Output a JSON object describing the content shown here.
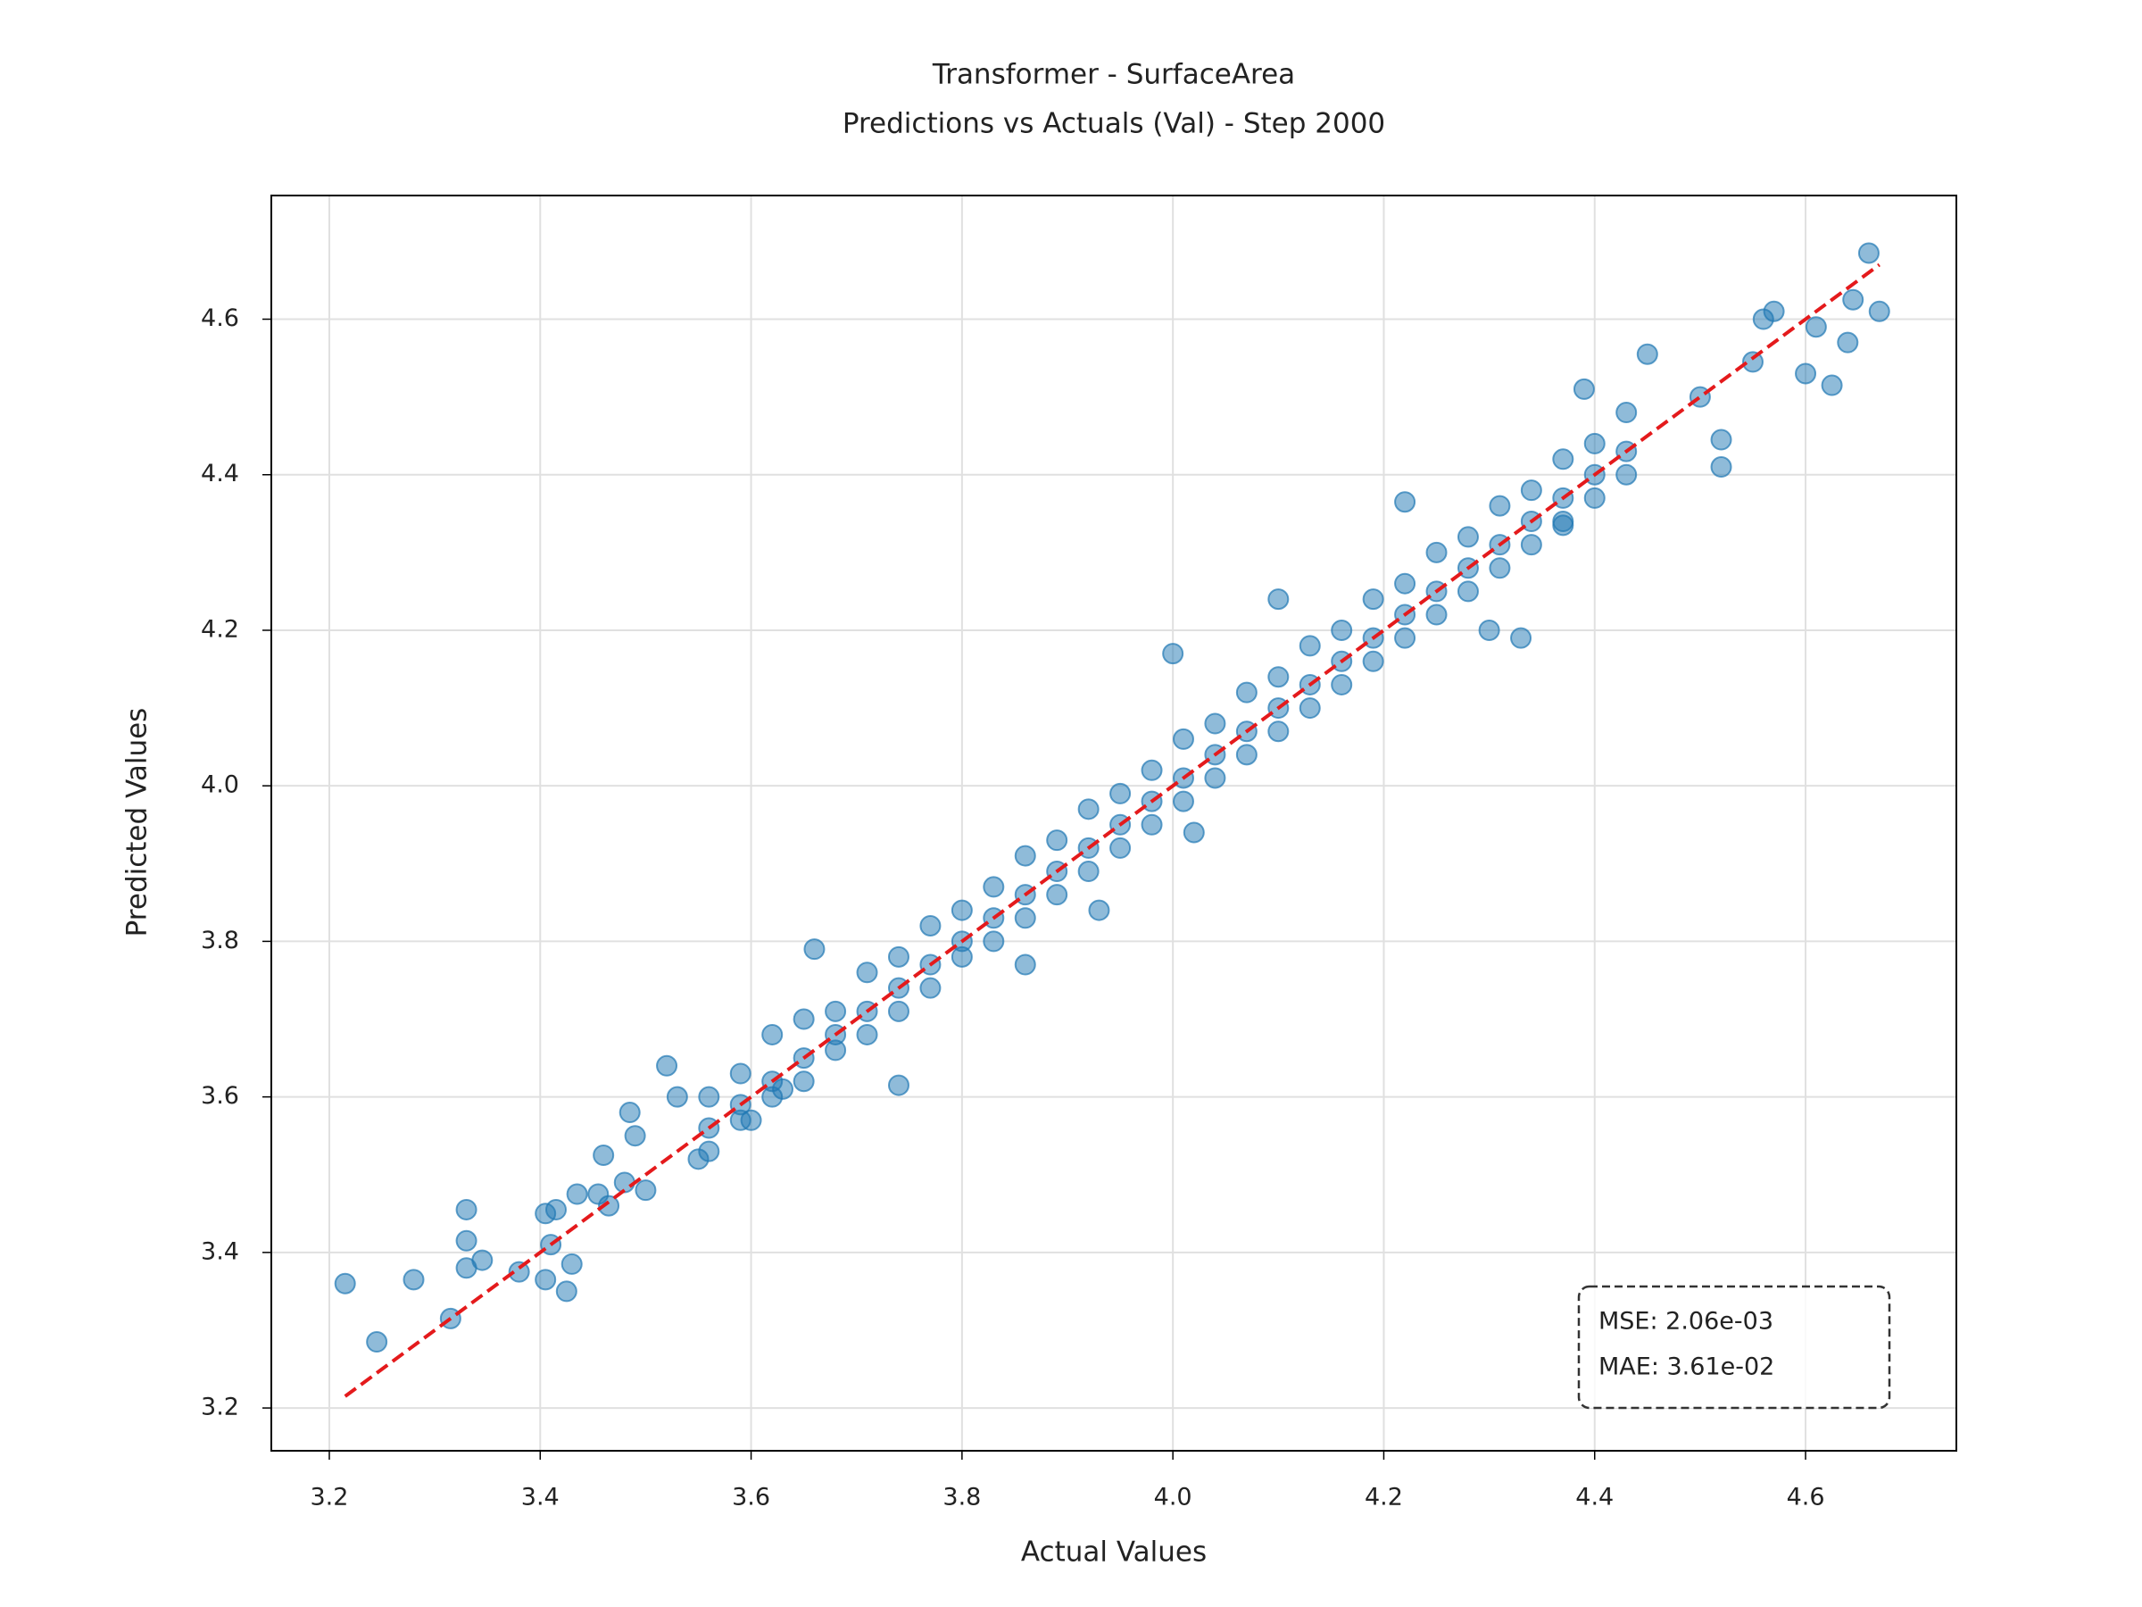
{
  "chart_data": {
    "type": "scatter",
    "title": "Transformer - SurfaceArea",
    "subtitle": "Predictions vs Actuals (Val) - Step 2000",
    "xlabel": "Actual Values",
    "ylabel": "Predicted Values",
    "xlim": [
      3.145,
      4.743
    ],
    "ylim": [
      3.145,
      4.759
    ],
    "xticks": [
      3.2,
      3.4,
      3.6,
      3.8,
      {
        "value": 4,
        "label": "4.0"
      },
      4.2,
      4.4,
      4.6
    ],
    "yticks": [
      3.2,
      3.4,
      3.6,
      3.8,
      {
        "value": 4,
        "label": "4.0"
      },
      4.2,
      4.4,
      4.6
    ],
    "grid": true,
    "x": [
      3.215,
      3.245,
      3.28,
      3.315,
      3.33,
      3.33,
      3.33,
      3.345,
      3.38,
      3.405,
      3.405,
      3.41,
      3.415,
      3.425,
      3.43,
      3.435,
      3.455,
      3.465,
      3.46,
      3.48,
      3.485,
      3.49,
      3.5,
      3.52,
      3.53,
      3.55,
      3.6,
      3.63,
      3.66,
      3.74,
      3.86,
      3.93,
      4.02,
      4.0,
      4.1,
      4.22,
      4.3,
      4.33,
      4.37,
      4.39,
      4.45,
      4.5,
      4.52,
      4.52,
      4.55,
      4.56,
      4.57,
      4.6,
      4.61,
      4.625,
      4.64,
      4.645,
      4.66,
      4.67,
      3.56,
      3.56,
      3.56,
      3.59,
      3.59,
      3.59,
      3.62,
      3.62,
      3.62,
      3.65,
      3.65,
      3.65,
      3.68,
      3.68,
      3.68,
      3.71,
      3.71,
      3.71,
      3.74,
      3.74,
      3.74,
      3.77,
      3.77,
      3.77,
      3.8,
      3.8,
      3.8,
      3.83,
      3.83,
      3.83,
      3.86,
      3.86,
      3.86,
      3.89,
      3.89,
      3.89,
      3.92,
      3.92,
      3.92,
      3.95,
      3.95,
      3.95,
      3.98,
      3.98,
      3.98,
      4.01,
      4.01,
      4.01,
      4.04,
      4.04,
      4.04,
      4.07,
      4.07,
      4.07,
      4.1,
      4.1,
      4.1,
      4.13,
      4.13,
      4.13,
      4.16,
      4.16,
      4.16,
      4.19,
      4.19,
      4.19,
      4.22,
      4.22,
      4.22,
      4.25,
      4.25,
      4.25,
      4.28,
      4.28,
      4.28,
      4.31,
      4.31,
      4.31,
      4.34,
      4.34,
      4.34,
      4.37,
      4.37,
      4.37,
      4.4,
      4.4,
      4.4,
      4.43,
      4.43,
      4.43
    ],
    "series": [
      {
        "color": "#1f77b4",
        "values": [
          3.36,
          3.285,
          3.365,
          3.315,
          3.455,
          3.415,
          3.38,
          3.39,
          3.375,
          3.365,
          3.45,
          3.41,
          3.455,
          3.35,
          3.385,
          3.475,
          3.475,
          3.46,
          3.525,
          3.49,
          3.58,
          3.55,
          3.48,
          3.64,
          3.6,
          3.52,
          3.57,
          3.61,
          3.79,
          3.615,
          3.77,
          3.84,
          3.94,
          4.17,
          4.24,
          4.365,
          4.2,
          4.19,
          4.335,
          4.51,
          4.555,
          4.5,
          4.445,
          4.41,
          4.545,
          4.6,
          4.61,
          4.53,
          4.59,
          4.515,
          4.57,
          4.625,
          4.685,
          4.61,
          3.6,
          3.56,
          3.53,
          3.63,
          3.59,
          3.57,
          3.68,
          3.62,
          3.6,
          3.7,
          3.65,
          3.62,
          3.71,
          3.68,
          3.66,
          3.76,
          3.71,
          3.68,
          3.78,
          3.74,
          3.71,
          3.82,
          3.77,
          3.74,
          3.84,
          3.8,
          3.78,
          3.87,
          3.83,
          3.8,
          3.91,
          3.86,
          3.83,
          3.93,
          3.89,
          3.86,
          3.97,
          3.92,
          3.89,
          3.99,
          3.95,
          3.92,
          4.02,
          3.98,
          3.95,
          4.06,
          4.01,
          3.98,
          4.08,
          4.04,
          4.01,
          4.12,
          4.07,
          4.04,
          4.14,
          4.1,
          4.07,
          4.18,
          4.13,
          4.1,
          4.2,
          4.16,
          4.13,
          4.24,
          4.19,
          4.16,
          4.26,
          4.22,
          4.19,
          4.3,
          4.25,
          4.22,
          4.32,
          4.28,
          4.25,
          4.36,
          4.31,
          4.28,
          4.38,
          4.34,
          4.31,
          4.42,
          4.37,
          4.34,
          4.44,
          4.4,
          4.37,
          4.48,
          4.43,
          4.4
        ]
      }
    ],
    "reference_line": {
      "x": [
        3.215,
        4.67
      ],
      "y": [
        3.215,
        4.67
      ],
      "color": "#e41a1c"
    },
    "annotations": [
      "MSE: 2.06e-03",
      "MAE: 3.61e-02"
    ]
  }
}
